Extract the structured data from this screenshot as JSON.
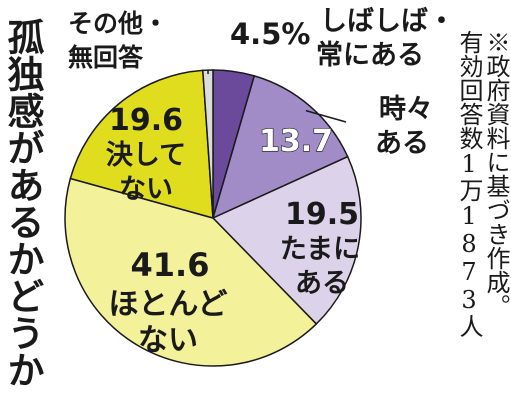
{
  "title": "孤独感があるかどうか",
  "note": {
    "line1": "※政府資料に基づき作成。",
    "line2": "有効回答数1万1873人"
  },
  "colors": {
    "often": "#6b4a9b",
    "sometimes": "#a28cc8",
    "occasionally": "#dcd3ea",
    "rarely": "#f3f19a",
    "never": "#e0dc1e",
    "other": "#dcdcdc"
  },
  "chart_data": {
    "type": "pie",
    "title": "孤独感があるかどうか",
    "start_angle_deg": 0,
    "direction": "clockwise",
    "slices": [
      {
        "key": "often",
        "label_lines": [
          "しばしば・",
          "常にある"
        ],
        "value": 4.5,
        "display": "4.5%"
      },
      {
        "key": "sometimes",
        "label_lines": [
          "時々",
          "ある"
        ],
        "value": 13.7,
        "display": "13.7"
      },
      {
        "key": "occasionally",
        "label_lines": [
          "たまに",
          "ある"
        ],
        "value": 19.5,
        "display": "19.5"
      },
      {
        "key": "rarely",
        "label_lines": [
          "ほとんど",
          "ない"
        ],
        "value": 41.6,
        "display": "41.6"
      },
      {
        "key": "never",
        "label_lines": [
          "決して",
          "ない"
        ],
        "value": 19.6,
        "display": "19.6"
      },
      {
        "key": "other",
        "label_lines": [
          "その他・",
          "無回答"
        ],
        "value": 1.1,
        "display": ""
      }
    ]
  }
}
